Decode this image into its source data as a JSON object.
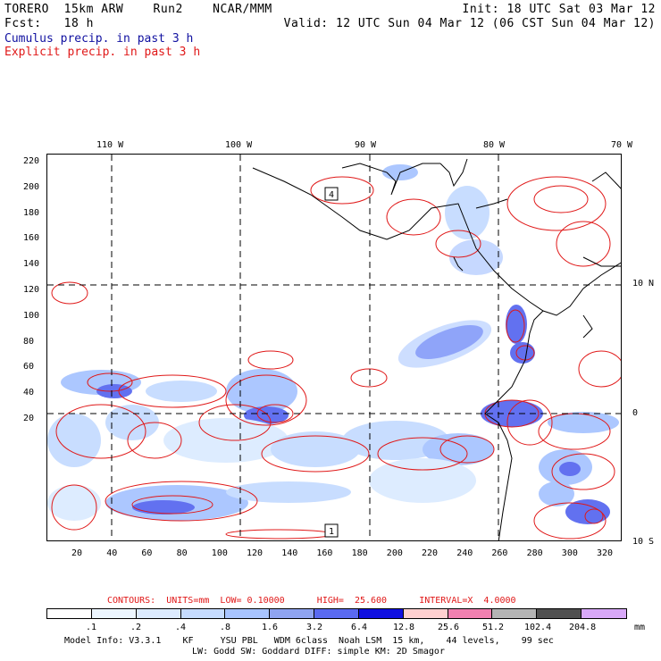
{
  "header": {
    "line1_left": "TORERO  15km ARW    Run2    NCAR/MMM",
    "line1_right": "Init: 18 UTC Sat 03 Mar 12",
    "line2_left": "Fcst:   18 h",
    "line2_right": "Valid: 12 UTC Sun 04 Mar 12 (06 CST Sun 04 Mar 12)"
  },
  "legend": {
    "cumulus": "Cumulus precip. in past 3 h",
    "explicit": "Explicit precip. in past 3 h"
  },
  "map": {
    "lon_labels": [
      "110 W",
      "100 W",
      "90 W",
      "80 W",
      "70 W"
    ],
    "lat_labels": [
      "10 N",
      "0",
      "10 S"
    ],
    "y_ticks": [
      "220",
      "200",
      "180",
      "160",
      "140",
      "120",
      "100",
      "80",
      "60",
      "40",
      "20"
    ],
    "x_ticks": [
      "20",
      "40",
      "60",
      "80",
      "100",
      "120",
      "140",
      "160",
      "180",
      "200",
      "220",
      "240",
      "260",
      "280",
      "300",
      "320"
    ],
    "contour_labels": [
      "4",
      "1"
    ]
  },
  "contours_info": {
    "text": "CONTOURS:  UNITS=mm  LOW= 0.10000      HIGH=  25.600      INTERVAL=X  4.0000"
  },
  "colorbar": {
    "labels": [
      ".1",
      ".2",
      ".4",
      ".8",
      "1.6",
      "3.2",
      "6.4",
      "12.8",
      "25.6",
      "51.2",
      "102.4",
      "204.8"
    ],
    "units": "mm",
    "colors": [
      "#ffffff",
      "#ecf6ff",
      "#dcebff",
      "#c6dcff",
      "#a8c4ff",
      "#8fa4f0",
      "#5a6af0",
      "#1010e0",
      "#ffd0d0",
      "#f080b0",
      "#b4b4b4",
      "#505050",
      "#d8a8f8"
    ]
  },
  "model_info": {
    "line1": "Model Info: V3.3.1    KF     YSU PBL   WDM 6class  Noah LSM  15 km,    44 levels,    99 sec",
    "line2": "LW: Godd SW: Goddard DIFF: simple KM: 2D Smagor"
  }
}
